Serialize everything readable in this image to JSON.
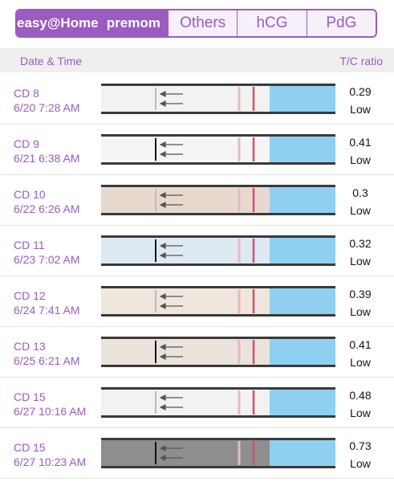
{
  "tabs": [
    "easy@Home",
    "premom",
    "Others",
    "hCG",
    "PdG"
  ],
  "header": {
    "date_time": "Date & Time",
    "ratio": "T/C ratio"
  },
  "rows": [
    {
      "cd": "CD 8",
      "datetime": "6/20 7:28 AM",
      "ratio": 0.29,
      "level": "Low"
    },
    {
      "cd": "CD 9",
      "datetime": "6/21 6:38 AM",
      "ratio": 0.41,
      "level": "Low"
    },
    {
      "cd": "CD 10",
      "datetime": "6/22 6:26 AM",
      "ratio": 0.3,
      "level": "Low"
    },
    {
      "cd": "CD 11",
      "datetime": "6/23 7:02 AM",
      "ratio": 0.32,
      "level": "Low"
    },
    {
      "cd": "CD 12",
      "datetime": "6/24 7:41 AM",
      "ratio": 0.39,
      "level": "Low"
    },
    {
      "cd": "CD 13",
      "datetime": "6/25 6:21 AM",
      "ratio": 0.41,
      "level": "Low"
    },
    {
      "cd": "CD 15",
      "datetime": "6/27 10:16 AM",
      "ratio": 0.48,
      "level": "Low"
    },
    {
      "cd": "CD 15",
      "datetime": "6/27 10:23 AM",
      "ratio": 0.73,
      "level": "Low"
    }
  ]
}
